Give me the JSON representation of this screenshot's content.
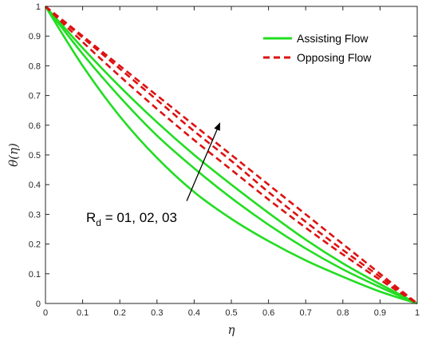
{
  "chart_data": {
    "type": "line",
    "xlabel": "η",
    "ylabel": "θ(η)",
    "xlim": [
      0,
      1
    ],
    "ylim": [
      0,
      1
    ],
    "xticks": [
      "0",
      "0.1",
      "0.2",
      "0.3",
      "0.4",
      "0.5",
      "0.6",
      "0.7",
      "0.8",
      "0.9",
      "1"
    ],
    "yticks": [
      "0",
      "0.1",
      "0.2",
      "0.3",
      "0.4",
      "0.5",
      "0.6",
      "0.7",
      "0.8",
      "0.9",
      "1"
    ],
    "grid": false,
    "legend_position": "top-right",
    "legend": [
      {
        "label": "Assisting Flow",
        "color": "#22dd22",
        "style": "solid"
      },
      {
        "label": "Opposing Flow",
        "color": "#dd1111",
        "style": "dashed"
      }
    ],
    "x": [
      0,
      0.1,
      0.2,
      0.3,
      0.4,
      0.5,
      0.6,
      0.7,
      0.8,
      0.9,
      1
    ],
    "series": [
      {
        "group": "Assisting Flow",
        "color": "#22dd22",
        "dash": false,
        "values": [
          1,
          0.8,
          0.63,
          0.49,
          0.375,
          0.285,
          0.21,
          0.145,
          0.09,
          0.04,
          0
        ]
      },
      {
        "group": "Assisting Flow",
        "color": "#22dd22",
        "dash": false,
        "values": [
          1,
          0.84,
          0.695,
          0.565,
          0.455,
          0.355,
          0.265,
          0.185,
          0.115,
          0.055,
          0
        ]
      },
      {
        "group": "Assisting Flow",
        "color": "#22dd22",
        "dash": false,
        "values": [
          1,
          0.86,
          0.73,
          0.61,
          0.5,
          0.4,
          0.305,
          0.215,
          0.135,
          0.065,
          0
        ]
      },
      {
        "group": "Opposing Flow",
        "color": "#dd1111",
        "dash": true,
        "values": [
          1,
          0.88,
          0.765,
          0.655,
          0.55,
          0.45,
          0.35,
          0.255,
          0.165,
          0.08,
          0
        ]
      },
      {
        "group": "Opposing Flow",
        "color": "#dd1111",
        "dash": true,
        "values": [
          1,
          0.895,
          0.79,
          0.685,
          0.58,
          0.48,
          0.375,
          0.275,
          0.18,
          0.09,
          0
        ]
      },
      {
        "group": "Opposing Flow",
        "color": "#dd1111",
        "dash": true,
        "values": [
          1,
          0.9,
          0.8,
          0.7,
          0.6,
          0.5,
          0.4,
          0.3,
          0.2,
          0.1,
          0
        ]
      }
    ],
    "annotation": {
      "text_main": "R",
      "text_sub": "d",
      "text_rest": " = 01, 02, 03",
      "arrow_from": [
        0.38,
        0.345
      ],
      "arrow_to": [
        0.47,
        0.61
      ]
    }
  }
}
